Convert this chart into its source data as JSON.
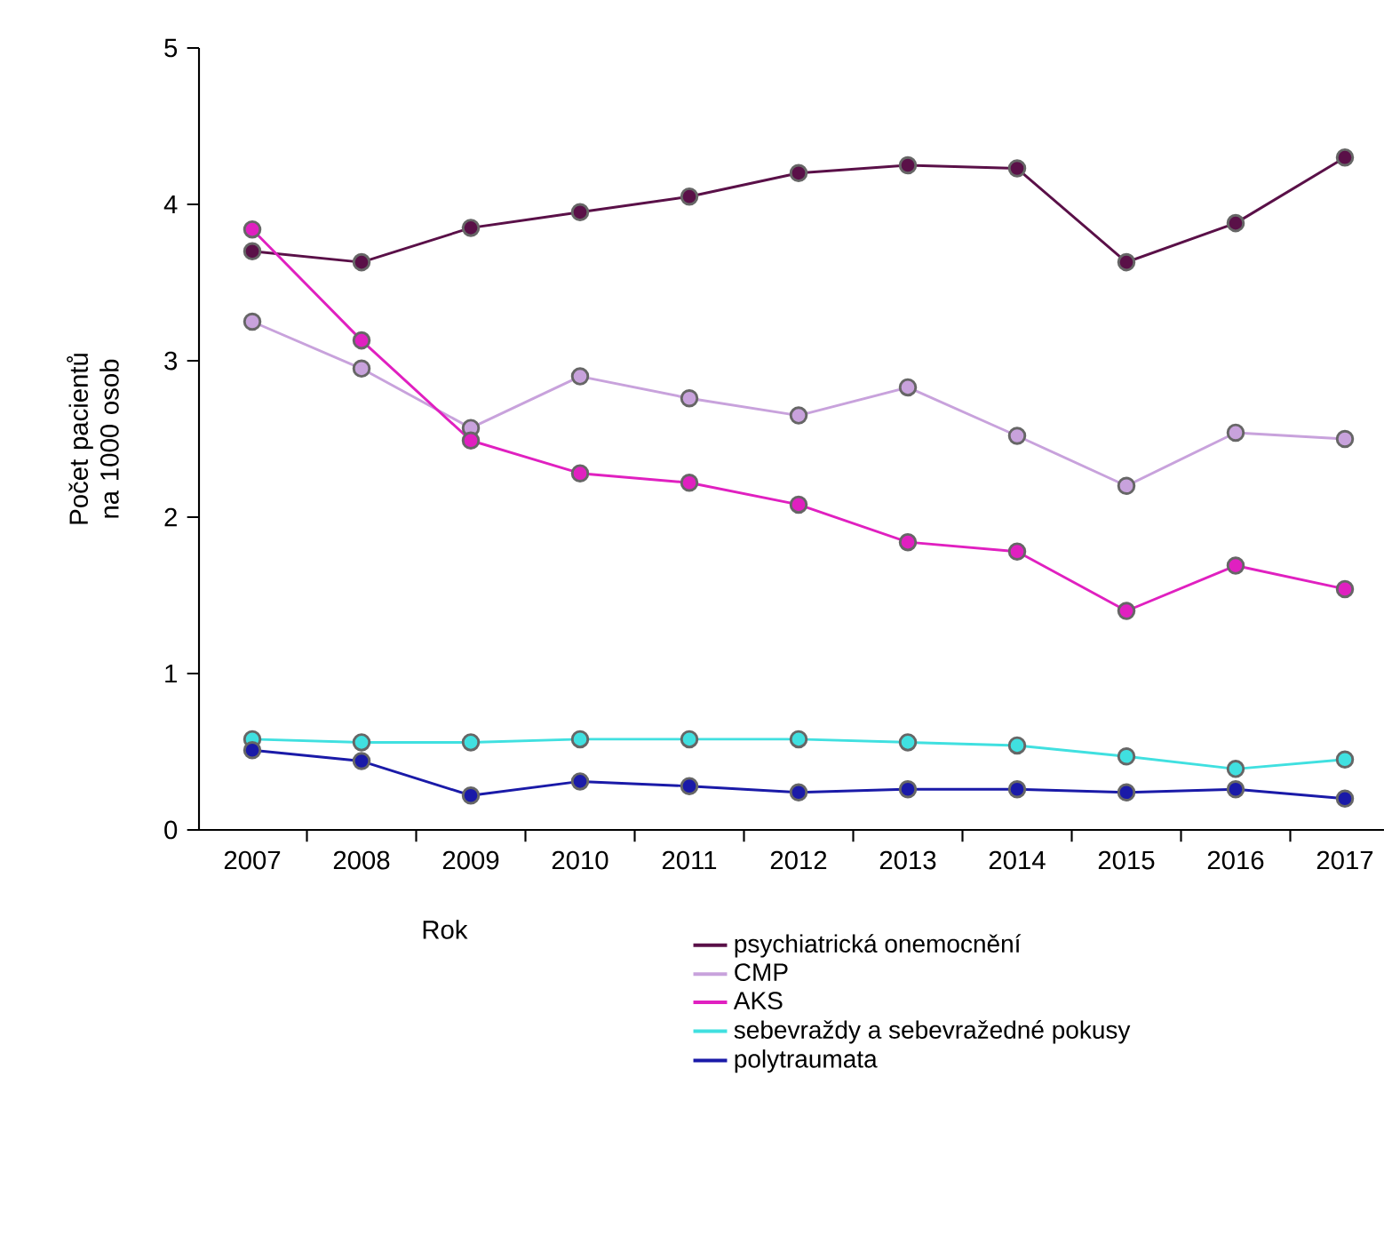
{
  "chart_data": {
    "type": "line",
    "xlabel": "Rok",
    "ylabel": "Počet pacientů na 1000 osob",
    "categories": [
      "2007",
      "2008",
      "2009",
      "2010",
      "2011",
      "2012",
      "2013",
      "2014",
      "2015",
      "2016",
      "2017"
    ],
    "ylim": [
      0,
      5
    ],
    "yticks": [
      0,
      1,
      2,
      3,
      4,
      5
    ],
    "grid": false,
    "legend": "bottom",
    "marker": "circle",
    "line_style": "solid",
    "series": [
      {
        "name": "psychiatrická onemocnění",
        "color": "#5a1048",
        "values": [
          3.7,
          3.63,
          3.85,
          3.95,
          4.05,
          4.2,
          4.25,
          4.23,
          3.63,
          3.88,
          4.3
        ]
      },
      {
        "name": "CMP",
        "color": "#c8a2dc",
        "values": [
          3.25,
          2.95,
          2.57,
          2.9,
          2.76,
          2.65,
          2.83,
          2.52,
          2.2,
          2.54,
          2.5
        ]
      },
      {
        "name": "AKS",
        "color": "#e020c0",
        "values": [
          3.84,
          3.13,
          2.49,
          2.28,
          2.22,
          2.08,
          1.84,
          1.78,
          1.4,
          1.69,
          1.54
        ]
      },
      {
        "name": "sebevraždy a sebevražedné pokusy",
        "color": "#40e0e0",
        "values": [
          0.58,
          0.56,
          0.56,
          0.58,
          0.58,
          0.58,
          0.56,
          0.54,
          0.47,
          0.39,
          0.45
        ]
      },
      {
        "name": "polytraumata",
        "color": "#1a1aa8",
        "values": [
          0.51,
          0.44,
          0.22,
          0.31,
          0.28,
          0.24,
          0.26,
          0.26,
          0.24,
          0.26,
          0.2
        ]
      }
    ]
  }
}
